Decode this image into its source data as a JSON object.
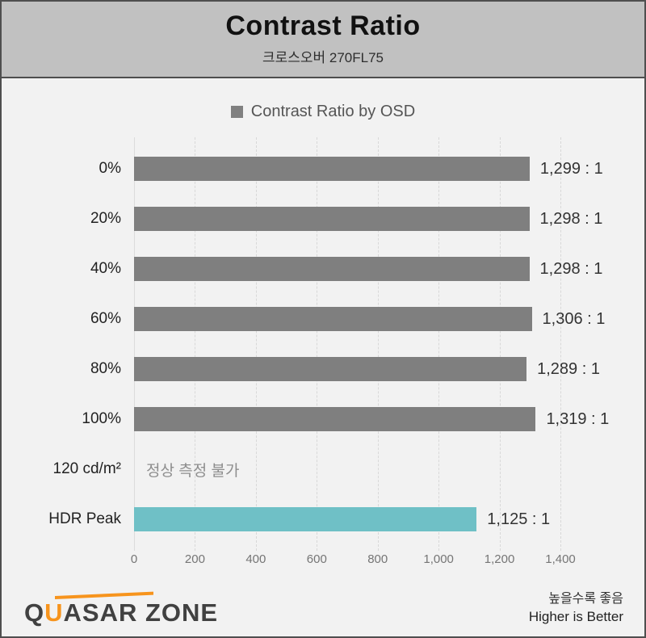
{
  "header": {
    "title": "Contrast Ratio",
    "subtitle": "크로스오버 270FL75"
  },
  "legend": {
    "label": "Contrast Ratio by OSD",
    "swatch_color": "#808080"
  },
  "chart_data": {
    "type": "bar",
    "orientation": "horizontal",
    "title": "Contrast Ratio",
    "legend_entries": [
      "Contrast Ratio by OSD"
    ],
    "categories": [
      "0%",
      "20%",
      "40%",
      "60%",
      "80%",
      "100%",
      "120 cd/m²",
      "HDR Peak"
    ],
    "values": [
      1299,
      1298,
      1298,
      1306,
      1289,
      1319,
      null,
      1125
    ],
    "value_labels": [
      "1,299 : 1",
      "1,298 : 1",
      "1,298 : 1",
      "1,306 : 1",
      "1,289 : 1",
      "1,319 : 1",
      "정상 측정 불가",
      "1,125 : 1"
    ],
    "bar_colors": [
      "#7f7f7f",
      "#7f7f7f",
      "#7f7f7f",
      "#7f7f7f",
      "#7f7f7f",
      "#7f7f7f",
      null,
      "#6fc0c6"
    ],
    "xlim": [
      0,
      1400
    ],
    "x_ticks": [
      "0",
      "200",
      "400",
      "600",
      "800",
      "1,000",
      "1,200",
      "1,400"
    ],
    "x_tick_values": [
      0,
      200,
      400,
      600,
      800,
      1000,
      1200,
      1400
    ],
    "grid": true,
    "grid_style": "dashed-vertical"
  },
  "footer": {
    "logo_q": "Q",
    "logo_u": "U",
    "logo_rest": "ASAR ZONE",
    "note_ko": "높을수록 좋음",
    "note_en": "Higher is Better"
  },
  "colors": {
    "header_bg": "#c1c1c1",
    "body_bg": "#f2f2f2",
    "frame_border": "#4f4f4f",
    "bar_gray": "#7f7f7f",
    "bar_teal": "#6fc0c6",
    "gridline": "#d8d8d8",
    "logo_accent": "#f7941d"
  }
}
